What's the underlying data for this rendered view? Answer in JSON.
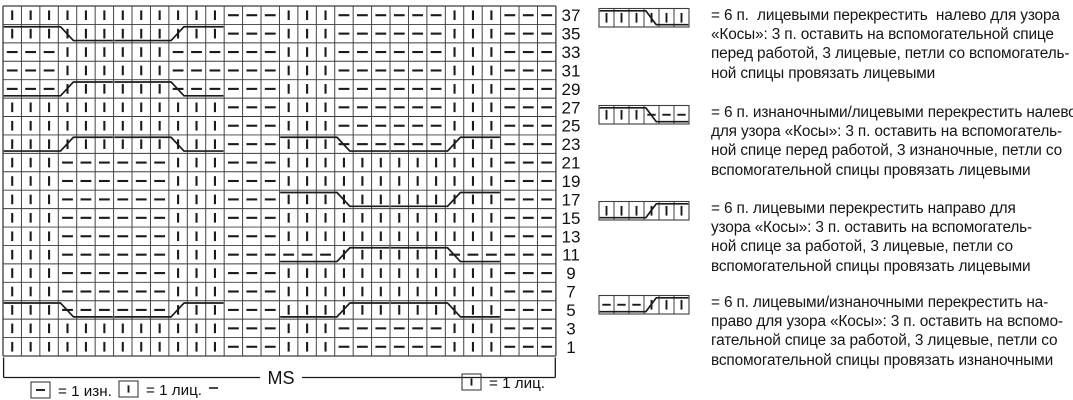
{
  "colors": {
    "ink": "#1b1b1b",
    "grid": "#3c3c3c"
  },
  "chart": {
    "columns": 30,
    "ms_label": "MS",
    "rows": [
      {
        "num": 37,
        "stitches": "kkkkkkkkkkkkpppkkkppppppkkkppp",
        "cables": []
      },
      {
        "num": 35,
        "stitches": "kkkkkkkkkkkkpppkkkppppppkkkppp",
        "cables": [
          {
            "col": 1,
            "type": 1
          },
          {
            "col": 7,
            "type": 3
          }
        ]
      },
      {
        "num": 33,
        "stitches": "pppkkkkkkppppppkkkppppppkkkppp",
        "cables": []
      },
      {
        "num": 31,
        "stitches": "pppkkkkkkppppppkkkppppppkkkppp",
        "cables": []
      },
      {
        "num": 29,
        "stitches": "pppkkkkkkppppppkkkppppppkkkppp",
        "cables": [
          {
            "col": 1,
            "type": 4
          },
          {
            "col": 7,
            "type": 2
          }
        ]
      },
      {
        "num": 27,
        "stitches": "kkkkkkkkkkkkpppkkkppppppkkkppp",
        "cables": []
      },
      {
        "num": 25,
        "stitches": "kkkkkkkkkkkkpppkkkppppppkkkppp",
        "cables": []
      },
      {
        "num": 23,
        "stitches": "kkkkkkkkkkkkpppkkkppppppkkkppp",
        "cables": [
          {
            "col": 1,
            "type": 3
          },
          {
            "col": 7,
            "type": 1
          },
          {
            "col": 16,
            "type": 2
          },
          {
            "col": 22,
            "type": 4
          }
        ]
      },
      {
        "num": 21,
        "stitches": "kkkppppppkkkpppkkkkkkkkkkkkppp",
        "cables": []
      },
      {
        "num": 19,
        "stitches": "kkkppppppkkkpppkkkkkkkkkkkkppp",
        "cables": []
      },
      {
        "num": 17,
        "stitches": "kkkppppppkkkpppkkkkkkkkkkkkppp",
        "cables": [
          {
            "col": 16,
            "type": 1
          },
          {
            "col": 22,
            "type": 3
          }
        ]
      },
      {
        "num": 15,
        "stitches": "kkkppppppkkkpppkkkkkkkkkkkkppp",
        "cables": []
      },
      {
        "num": 13,
        "stitches": "kkkppppppkkkpppkkkkkkkkkkkkppp",
        "cables": []
      },
      {
        "num": 11,
        "stitches": "kkkppppppkkkppppppkkkkkkpppppp",
        "cables": [
          {
            "col": 16,
            "type": 4
          },
          {
            "col": 22,
            "type": 2
          }
        ]
      },
      {
        "num": 9,
        "stitches": "kkkppppppkkkpppkkkkkkkkkkkkppp",
        "cables": []
      },
      {
        "num": 7,
        "stitches": "kkkppppppkkkpppkkkkkkkkkkkkppp",
        "cables": []
      },
      {
        "num": 5,
        "stitches": "kkkppppppkkkpppkkkkkkkkkkkkppp",
        "cables": [
          {
            "col": 1,
            "type": 2
          },
          {
            "col": 7,
            "type": 4
          },
          {
            "col": 16,
            "type": 3
          },
          {
            "col": 22,
            "type": 1
          }
        ]
      },
      {
        "num": 3,
        "stitches": "kkkkkkkkkkkkpppkkkppppppkkkppp",
        "cables": []
      },
      {
        "num": 1,
        "stitches": "kkkkkkkkkkkkpppkkkppppppkkkppp",
        "cables": []
      }
    ]
  },
  "cable_types": {
    "1": {
      "cells": "kkkkkk",
      "direction": "left"
    },
    "2": {
      "cells": "kkkppp",
      "direction": "left"
    },
    "3": {
      "cells": "kkkkkk",
      "direction": "right"
    },
    "4": {
      "cells": "pppkkk",
      "direction": "right"
    }
  },
  "stitch_legend": {
    "items": [
      {
        "symbol": "p",
        "label": "= 1 изн."
      },
      {
        "symbol": "k",
        "label": "= 1 лиц."
      },
      {
        "symbol": "dash",
        "label": ""
      },
      {
        "symbol": "k",
        "label": "= 1 лиц."
      }
    ]
  },
  "cable_legend": {
    "entries": [
      {
        "type": 1,
        "lines": [
          "= 6 п.  лицевыми перекрестить  налево для узора",
          "«Косы»: 3 п. оставить на вспомогательной спице",
          "перед работой, 3 лицевые, петли со вспомогатель-",
          "ной спицы провязать лицевыми"
        ]
      },
      {
        "type": 2,
        "lines": [
          "= 6 п. изнаночными/лицевыми перекрестить налево",
          "для узора «Косы»: 3 п. оставить на вспомогатель-",
          "ной спице перед работой, 3 изнаночные, петли со",
          "вспомогательной спицы провязать лицевыми"
        ]
      },
      {
        "type": 3,
        "lines": [
          "= 6 п. лицевыми перекрестить направо для",
          "узора «Косы»: 3 п. оставить на вспомогатель-",
          "ной спице за работой, 3 лицевые, петли со",
          "вспомогательной спицы провязать лицевыми"
        ]
      },
      {
        "type": 4,
        "lines": [
          "= 6 п. лицевыми/изнаночными перекрестить на-",
          "право для узора «Косы»: 3 п. оставить на вспомо-",
          "гательной спице за работой, 3 лицевые, петли со",
          "вспомогательной спицы провязать изнаночными"
        ]
      }
    ]
  }
}
